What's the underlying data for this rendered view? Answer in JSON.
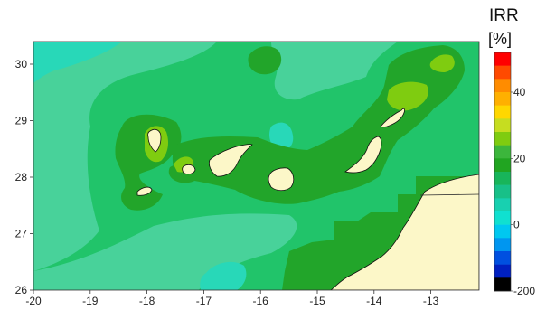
{
  "colorbar": {
    "title": "IRR",
    "unit": "[%]",
    "tick_labels": [
      "40",
      "20",
      "0",
      "-200"
    ],
    "colors_top_to_bottom": [
      "#ff0000",
      "#ff4a00",
      "#ff8c00",
      "#ffb000",
      "#ffd700",
      "#c6dd20",
      "#7fcc10",
      "#3cb63c",
      "#21a521",
      "#18b55a",
      "#18c088",
      "#18d0b0",
      "#10e0d0",
      "#00c8f0",
      "#0096f0",
      "#0050e0",
      "#0020c0",
      "#000000"
    ]
  },
  "axes": {
    "x_tick_labels": [
      "-20",
      "-19",
      "-18",
      "-17",
      "-16",
      "-15",
      "-14",
      "-13"
    ],
    "y_tick_labels": [
      "30",
      "29",
      "28",
      "27",
      "26"
    ]
  },
  "palette": {
    "background_field": "#21c46a",
    "light_field": "#48d29a",
    "cyan_field": "#28d8b8",
    "dark_field": "#22a52a",
    "bright_field": "#7fcc10",
    "land": "#fcf7c8"
  }
}
